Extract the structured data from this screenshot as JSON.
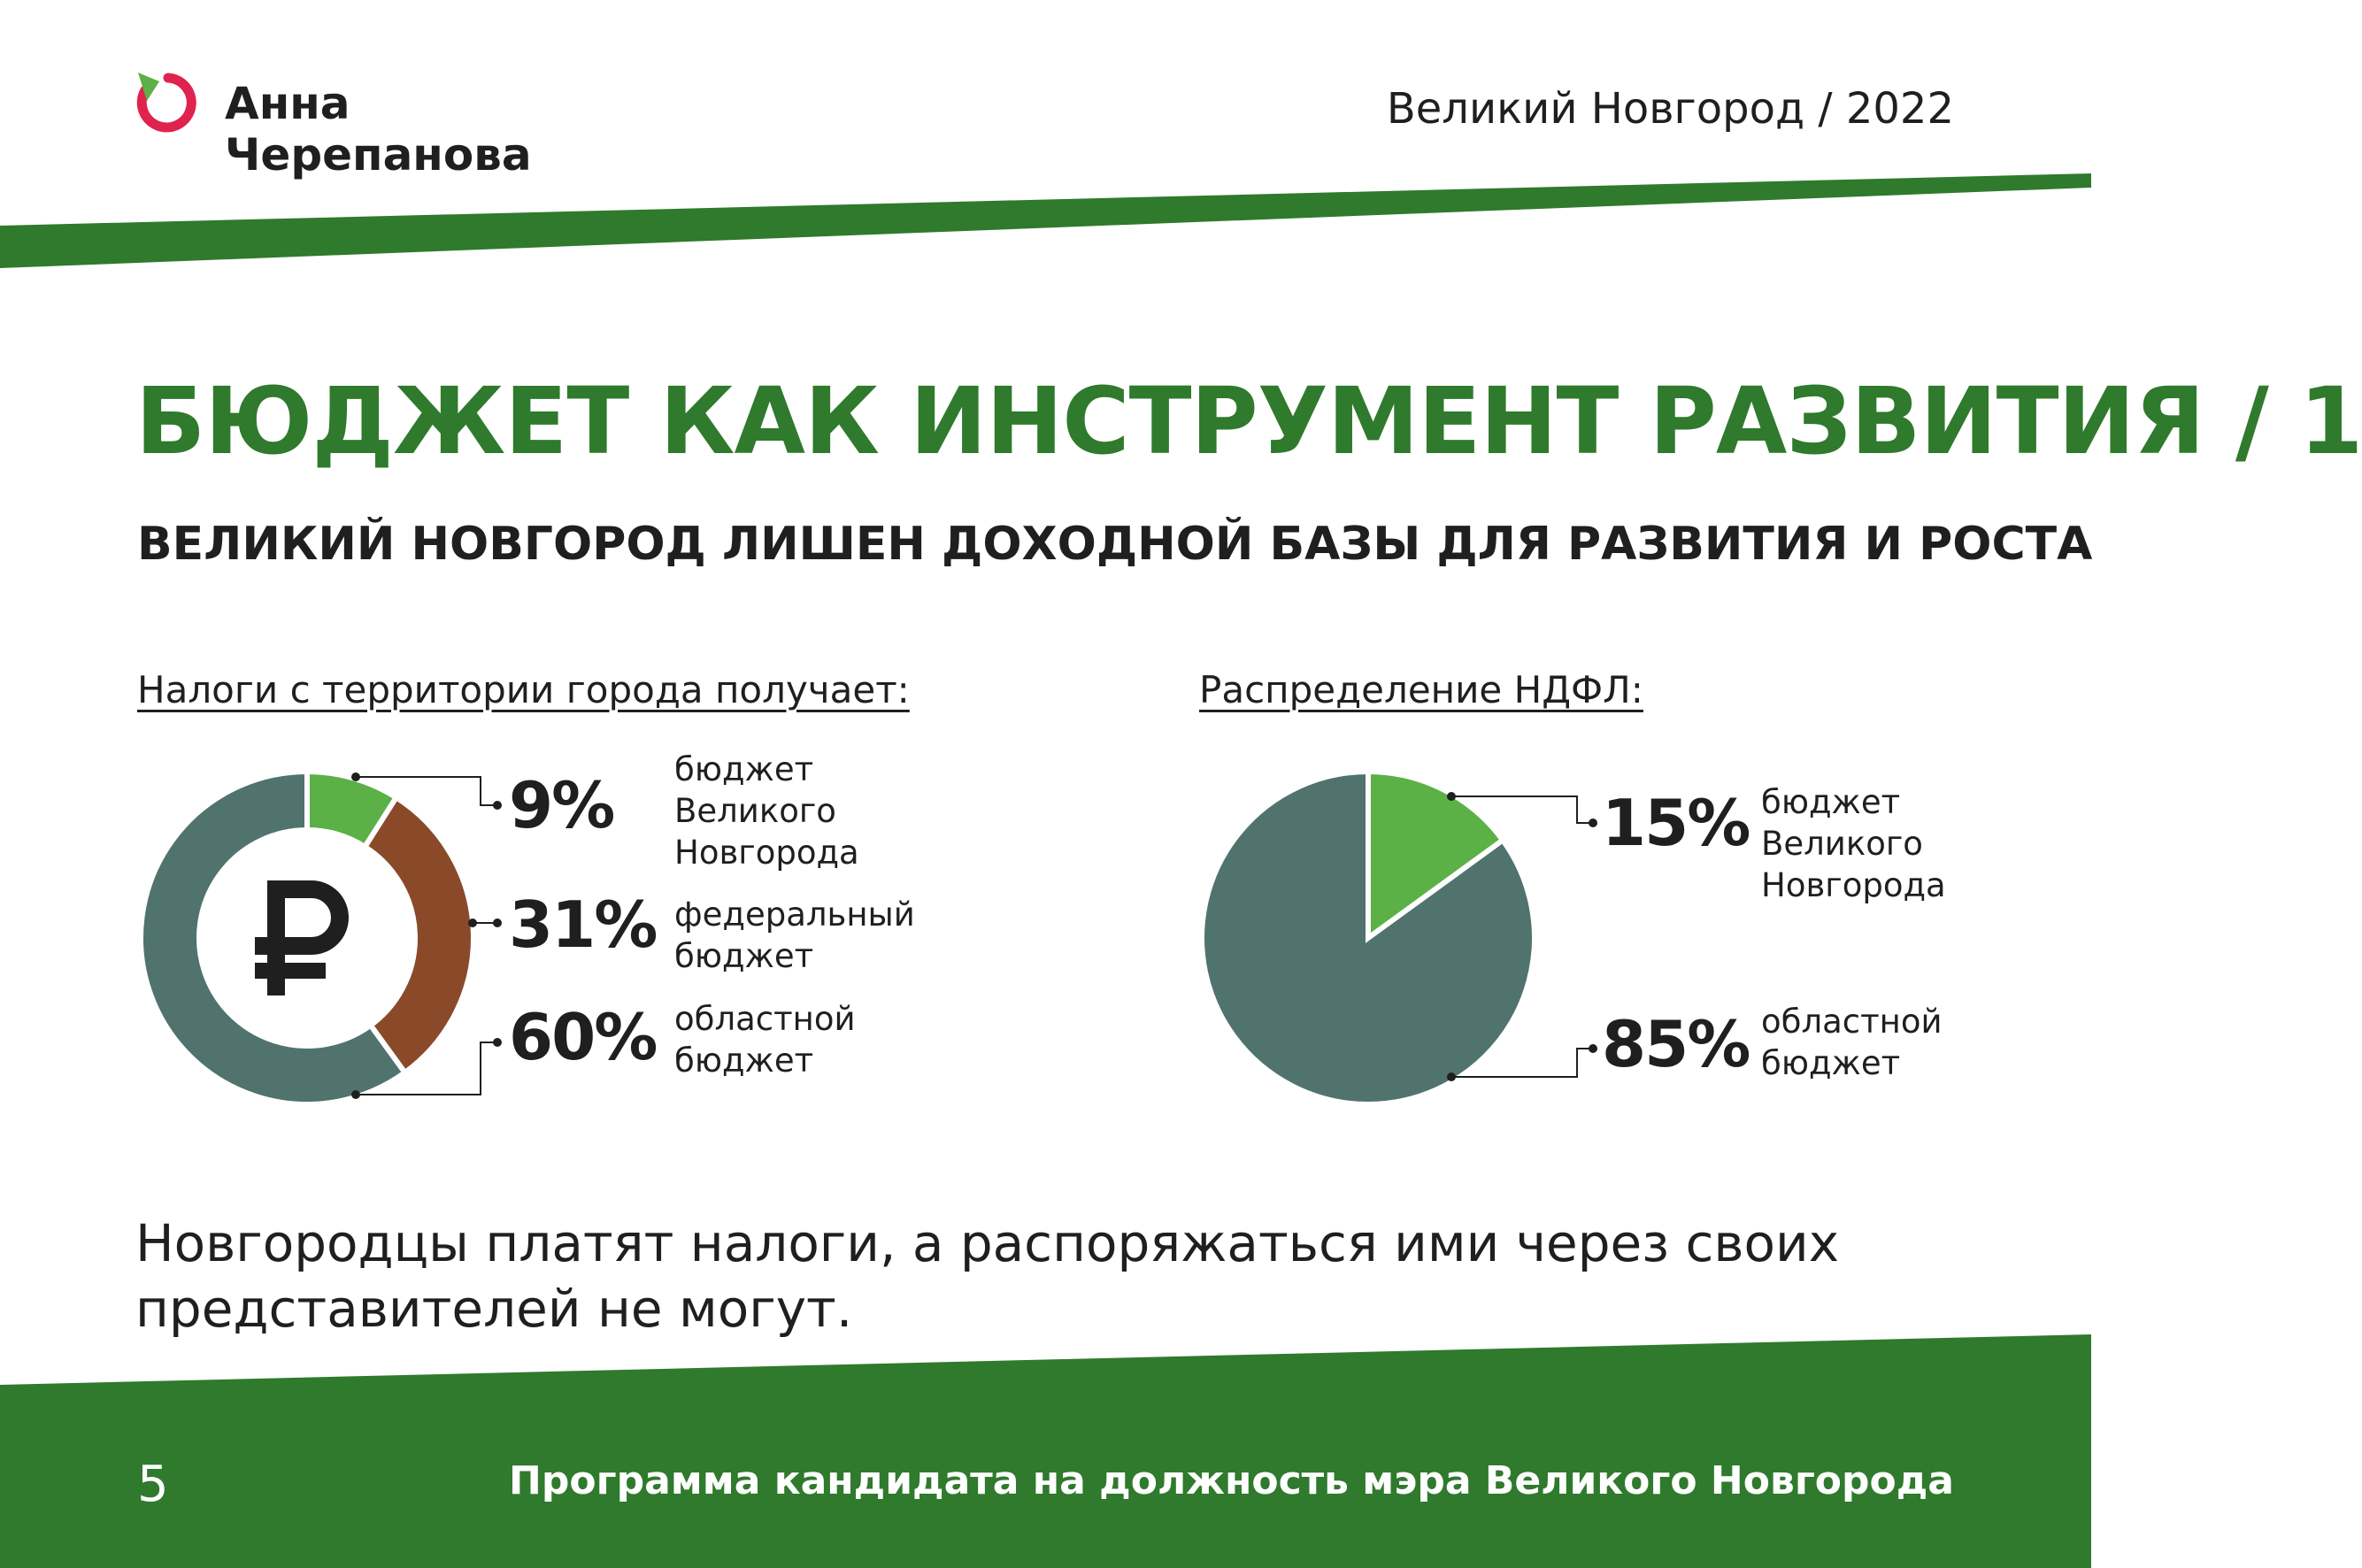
{
  "header": {
    "name_line1": "Анна",
    "name_line2": "Черепанова",
    "right": "Великий Новгород / 2022"
  },
  "title": "БЮДЖЕТ КАК ИНСТРУМЕНТ РАЗВИТИЯ / 1",
  "subtitle": "ВЕЛИКИЙ НОВГОРОД ЛИШЕН ДОХОДНОЙ БАЗЫ ДЛЯ РАЗВИТИЯ И РОСТА",
  "bottom_text": "Новгородцы платят налоги, а распоряжаться ими через своих представителей не могут.",
  "footer": {
    "page_number": "5",
    "text": "Программа кандидата на должность мэра Великого Новгорода"
  },
  "colors": {
    "brand_green": "#2f7a2c",
    "light_green": "#5bb146",
    "brown": "#8a4a2a",
    "slate": "#50736e",
    "logo_red": "#e0234e"
  },
  "icons": [
    "logo-icon",
    "ruble-icon"
  ],
  "chart_data": [
    {
      "type": "pie",
      "variant": "donut",
      "title": "Налоги с территории города получает:",
      "center_symbol": "₽",
      "slices": [
        {
          "pct": "9%",
          "value": 9,
          "label": [
            "бюджет",
            "Великого",
            "Новгорода"
          ],
          "color": "#5bb146"
        },
        {
          "pct": "31%",
          "value": 31,
          "label": [
            "федеральный",
            "бюджет"
          ],
          "color": "#8a4a2a"
        },
        {
          "pct": "60%",
          "value": 60,
          "label": [
            "областной",
            "бюджет"
          ],
          "color": "#50736e"
        }
      ]
    },
    {
      "type": "pie",
      "title": "Распределение НДФЛ:",
      "slices": [
        {
          "pct": "15%",
          "value": 15,
          "label": [
            "бюджет",
            "Великого",
            "Новгорода"
          ],
          "color": "#5bb146"
        },
        {
          "pct": "85%",
          "value": 85,
          "label": [
            "областной",
            "бюджет"
          ],
          "color": "#50736e"
        }
      ]
    }
  ]
}
